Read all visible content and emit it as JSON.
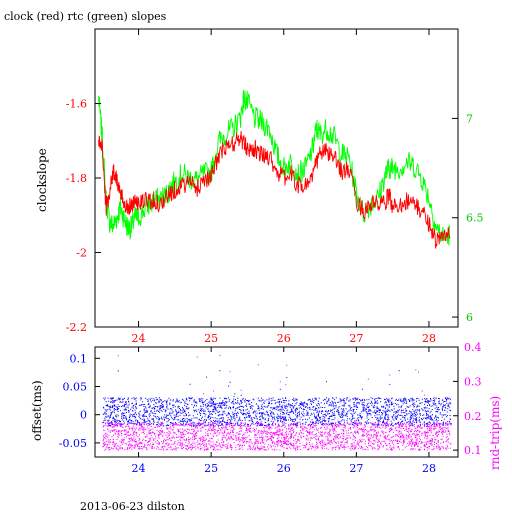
{
  "title": "clock (red) rtc (green) slopes",
  "footer": "2013-06-23 dilston",
  "colors": {
    "clock": "#ff0000",
    "rtc": "#00ff00",
    "offset": "#0000ff",
    "rnd_trip": "#ff00ff",
    "axis": "#000000"
  },
  "chart_data": [
    {
      "type": "line",
      "xlim": [
        23.4,
        28.4
      ],
      "x_ticks": [
        "24",
        "25",
        "26",
        "27",
        "28"
      ],
      "left_axis": {
        "label": "clockslope",
        "ylim": [
          -2.2,
          -1.4
        ],
        "ticks": [
          "-1.6",
          "-1.8",
          "-2",
          "-2.2"
        ]
      },
      "right_axis": {
        "label": "",
        "ylim": [
          5.95,
          7.45
        ],
        "ticks": [
          "6",
          "6.5",
          "7"
        ]
      },
      "series": [
        {
          "name": "clock",
          "axis": "left",
          "x": [
            23.45,
            23.5,
            23.55,
            23.6,
            23.65,
            23.7,
            23.75,
            23.8,
            23.85,
            23.9,
            23.95,
            24.0,
            24.1,
            24.2,
            24.3,
            24.4,
            24.45,
            24.5,
            24.6,
            24.7,
            24.8,
            24.9,
            25.0,
            25.1,
            25.2,
            25.3,
            25.4,
            25.45,
            25.5,
            25.6,
            25.7,
            25.8,
            25.9,
            26.0,
            26.1,
            26.2,
            26.3,
            26.4,
            26.45,
            26.5,
            26.6,
            26.7,
            26.8,
            26.9,
            27.0,
            27.1,
            27.2,
            27.3,
            27.4,
            27.45,
            27.5,
            27.6,
            27.7,
            27.8,
            27.9,
            28.0,
            28.1,
            28.2,
            28.3
          ],
          "y": [
            -1.7,
            -1.72,
            -1.88,
            -1.84,
            -1.78,
            -1.8,
            -1.85,
            -1.86,
            -1.88,
            -1.87,
            -1.86,
            -1.87,
            -1.86,
            -1.86,
            -1.87,
            -1.85,
            -1.84,
            -1.83,
            -1.82,
            -1.81,
            -1.83,
            -1.8,
            -1.8,
            -1.74,
            -1.72,
            -1.71,
            -1.69,
            -1.71,
            -1.72,
            -1.72,
            -1.74,
            -1.74,
            -1.78,
            -1.8,
            -1.79,
            -1.82,
            -1.82,
            -1.79,
            -1.76,
            -1.73,
            -1.73,
            -1.75,
            -1.78,
            -1.78,
            -1.86,
            -1.89,
            -1.87,
            -1.87,
            -1.87,
            -1.84,
            -1.88,
            -1.87,
            -1.86,
            -1.87,
            -1.89,
            -1.92,
            -1.97,
            -1.96,
            -1.94
          ]
        },
        {
          "name": "rtc",
          "axis": "right",
          "x": [
            23.45,
            23.5,
            23.55,
            23.6,
            23.65,
            23.7,
            23.75,
            23.8,
            23.85,
            23.9,
            23.95,
            24.0,
            24.1,
            24.2,
            24.3,
            24.4,
            24.45,
            24.5,
            24.6,
            24.7,
            24.8,
            24.9,
            25.0,
            25.1,
            25.2,
            25.3,
            25.4,
            25.45,
            25.5,
            25.6,
            25.7,
            25.8,
            25.9,
            26.0,
            26.1,
            26.2,
            26.3,
            26.4,
            26.45,
            26.5,
            26.6,
            26.7,
            26.8,
            26.9,
            27.0,
            27.1,
            27.2,
            27.3,
            27.4,
            27.45,
            27.5,
            27.6,
            27.7,
            27.8,
            27.9,
            28.0,
            28.1,
            28.2,
            28.3
          ],
          "y": [
            7.1,
            6.9,
            6.6,
            6.48,
            6.46,
            6.5,
            6.55,
            6.5,
            6.45,
            6.45,
            6.5,
            6.5,
            6.55,
            6.58,
            6.6,
            6.62,
            6.66,
            6.68,
            6.72,
            6.7,
            6.69,
            6.72,
            6.73,
            6.88,
            6.92,
            6.95,
            7.0,
            7.1,
            7.08,
            7.0,
            6.98,
            6.95,
            6.82,
            6.75,
            6.78,
            6.72,
            6.75,
            6.85,
            6.95,
            6.92,
            6.95,
            6.9,
            6.82,
            6.8,
            6.62,
            6.52,
            6.57,
            6.6,
            6.72,
            6.75,
            6.75,
            6.75,
            6.78,
            6.76,
            6.7,
            6.6,
            6.45,
            6.4,
            6.42
          ]
        }
      ]
    },
    {
      "type": "scatter",
      "xlim": [
        23.4,
        28.4
      ],
      "x_ticks": [
        "24",
        "25",
        "26",
        "27",
        "28"
      ],
      "left_axis": {
        "label": "offset(ms)",
        "ylim": [
          -0.075,
          0.12
        ],
        "ticks": [
          "0.1",
          "0.05",
          "0",
          "-0.05"
        ]
      },
      "right_axis": {
        "label": "rnd-trip(ms)",
        "ylim": [
          0.08,
          0.4
        ],
        "ticks": [
          "0.4",
          "0.3",
          "0.2",
          "0.1"
        ]
      },
      "series": [
        {
          "name": "offset",
          "axis": "left",
          "band": [
            -0.02,
            0.03
          ],
          "spread": [
            -0.04,
            0.08
          ],
          "x_range": [
            23.5,
            28.3
          ]
        },
        {
          "name": "rnd-trip",
          "axis": "right",
          "band": [
            0.1,
            0.18
          ],
          "spread": [
            0.1,
            0.38
          ],
          "x_range": [
            23.5,
            28.3
          ]
        }
      ]
    }
  ]
}
